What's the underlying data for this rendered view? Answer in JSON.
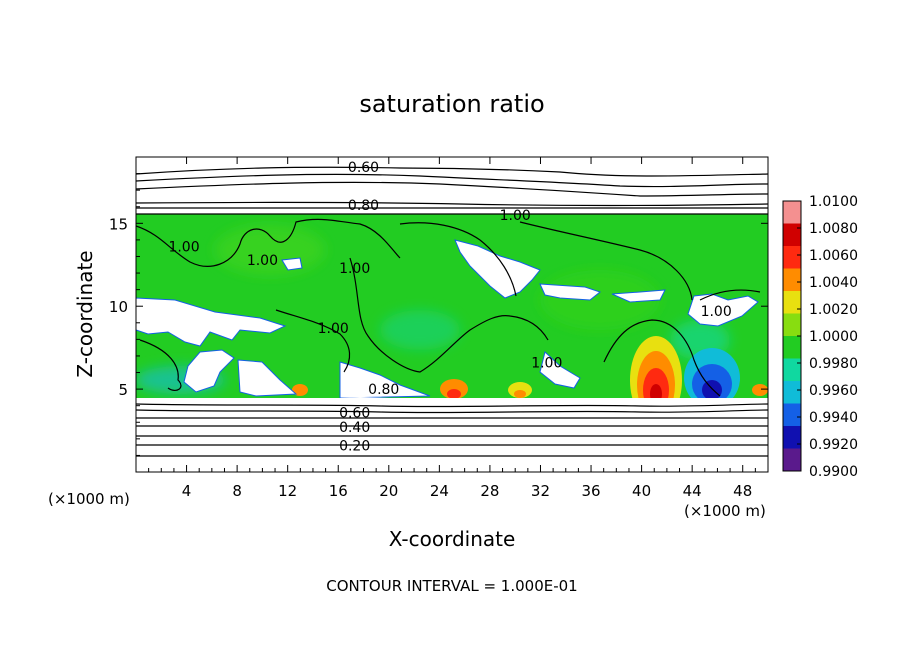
{
  "chart_data": {
    "type": "heatmap",
    "title": "saturation ratio",
    "xlabel": "X-coordinate",
    "ylabel": "Z-coordinate",
    "x_unit_left": "(×1000 m)",
    "x_unit_right": "(×1000 m)",
    "xlim": [
      0,
      50
    ],
    "ylim": [
      0,
      19
    ],
    "x_ticks": [
      4,
      8,
      12,
      16,
      20,
      24,
      28,
      32,
      36,
      40,
      44,
      48
    ],
    "x_tick_labels": [
      "4",
      "8",
      "12",
      "16",
      "20",
      "24",
      "28",
      "32",
      "36",
      "40",
      "44",
      "48"
    ],
    "y_ticks": [
      5,
      10,
      15
    ],
    "y_tick_labels": [
      "5",
      "10",
      "15"
    ],
    "colorbar": {
      "levels": [
        0.99,
        0.992,
        0.994,
        0.996,
        0.998,
        1.0,
        1.002,
        1.004,
        1.006,
        1.008,
        1.01
      ],
      "labels": [
        "0.9900",
        "0.9920",
        "0.9940",
        "0.9960",
        "0.9980",
        "1.0000",
        "1.0020",
        "1.0040",
        "1.0060",
        "1.0080",
        "1.0100"
      ],
      "colors": [
        "#5a1a8c",
        "#1010b0",
        "#1460e6",
        "#10bcd8",
        "#10d8a0",
        "#22cc22",
        "#88dd10",
        "#e8e010",
        "#ff8c00",
        "#ff2a10",
        "#d00000",
        "#f49090"
      ]
    },
    "contour_labels": [
      {
        "text": "0.60",
        "x": 18.0,
        "z": 18.4
      },
      {
        "text": "0.80",
        "x": 18.0,
        "z": 16.1
      },
      {
        "text": "1.00",
        "x": 30.0,
        "z": 15.5
      },
      {
        "text": "1.00",
        "x": 3.8,
        "z": 13.6
      },
      {
        "text": "1.00",
        "x": 10.0,
        "z": 12.8
      },
      {
        "text": "1.00",
        "x": 17.3,
        "z": 12.3
      },
      {
        "text": "1.00",
        "x": 15.6,
        "z": 8.7
      },
      {
        "text": "1.00",
        "x": 32.5,
        "z": 6.6
      },
      {
        "text": "1.00",
        "x": 45.9,
        "z": 9.7
      },
      {
        "text": "0.80",
        "x": 19.6,
        "z": 5.0
      },
      {
        "text": "0.60",
        "x": 17.3,
        "z": 3.6
      },
      {
        "text": "0.40",
        "x": 17.3,
        "z": 2.7
      },
      {
        "text": "0.20",
        "x": 17.3,
        "z": 1.6
      }
    ],
    "annotation": "CONTOUR INTERVAL = 1.000E-01"
  }
}
